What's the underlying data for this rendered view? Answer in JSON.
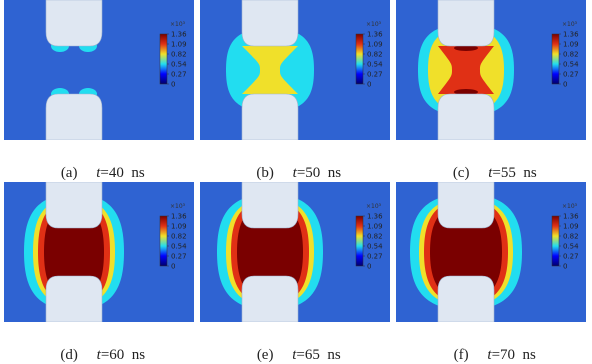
{
  "colors": {
    "background": "#2f63d2",
    "electrode": "#dfe7f2",
    "electrode_edge": "#9fb3cf",
    "colorbar": [
      "#00006a",
      "#0000ff",
      "#22ddf0",
      "#f0e02a",
      "#e03015",
      "#7a0000"
    ]
  },
  "colorbar": {
    "exponent": "×10³",
    "ticks": [
      "1.36",
      "1.09",
      "0.82",
      "0.54",
      "0.27",
      "0"
    ]
  },
  "panels": [
    {
      "id": "a",
      "label": "(a)",
      "tvar": "t",
      "eq": "=40  ns",
      "stage": 0
    },
    {
      "id": "b",
      "label": "(b)",
      "tvar": "t",
      "eq": "=50  ns",
      "stage": 1
    },
    {
      "id": "c",
      "label": "(c)",
      "tvar": "t",
      "eq": "=55  ns",
      "stage": 2
    },
    {
      "id": "d",
      "label": "(d)",
      "tvar": "t",
      "eq": "=60  ns",
      "stage": 3
    },
    {
      "id": "e",
      "label": "(e)",
      "tvar": "t",
      "eq": "=65  ns",
      "stage": 4
    },
    {
      "id": "f",
      "label": "(f)",
      "tvar": "t",
      "eq": "=70  ns",
      "stage": 5
    }
  ]
}
